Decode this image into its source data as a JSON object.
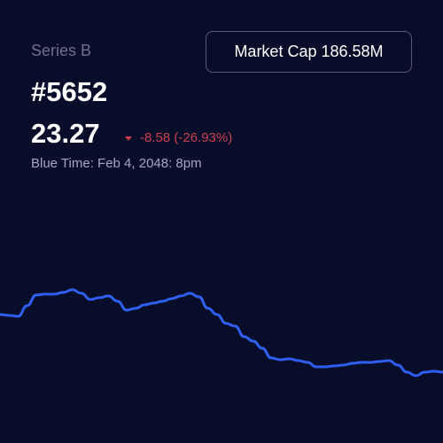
{
  "header": {
    "series": "Series B",
    "token": "#5652",
    "price": "23.27",
    "change": "-8.58 (-26.93%)",
    "time": "Blue Time: Feb 4, 2048: 8pm"
  },
  "button": {
    "label": "Market Cap",
    "value": "186.58M"
  },
  "chart_data": {
    "type": "line",
    "color": "#2f5ff0",
    "values": [
      31.85,
      31.72,
      31.59,
      33.17,
      34.75,
      34.89,
      34.89,
      35.15,
      35.55,
      35.02,
      34.09,
      34.36,
      34.62,
      33.83,
      32.51,
      32.77,
      33.3,
      33.57,
      33.83,
      34.23,
      34.62,
      35.02,
      34.49,
      32.77,
      31.85,
      30.53,
      30.13,
      28.55,
      27.89,
      26.83,
      25.38,
      25.12,
      25.25,
      24.99,
      24.72,
      24.06,
      24.06,
      24.19,
      24.33,
      24.59,
      24.72,
      24.72,
      24.86,
      24.99,
      24.33,
      23.27,
      22.74,
      23.27,
      23.4,
      23.27
    ]
  }
}
